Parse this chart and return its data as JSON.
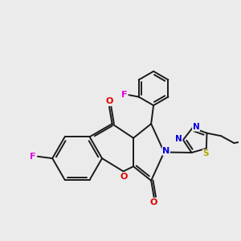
{
  "bg": "#ebebeb",
  "bond_color": "#1a1a1a",
  "bw": 1.4,
  "atom_colors": {
    "F": "#e000e0",
    "O": "#e00000",
    "N": "#0000dd",
    "S": "#aaaa00"
  },
  "figsize": [
    3.0,
    3.0
  ],
  "dpi": 100
}
